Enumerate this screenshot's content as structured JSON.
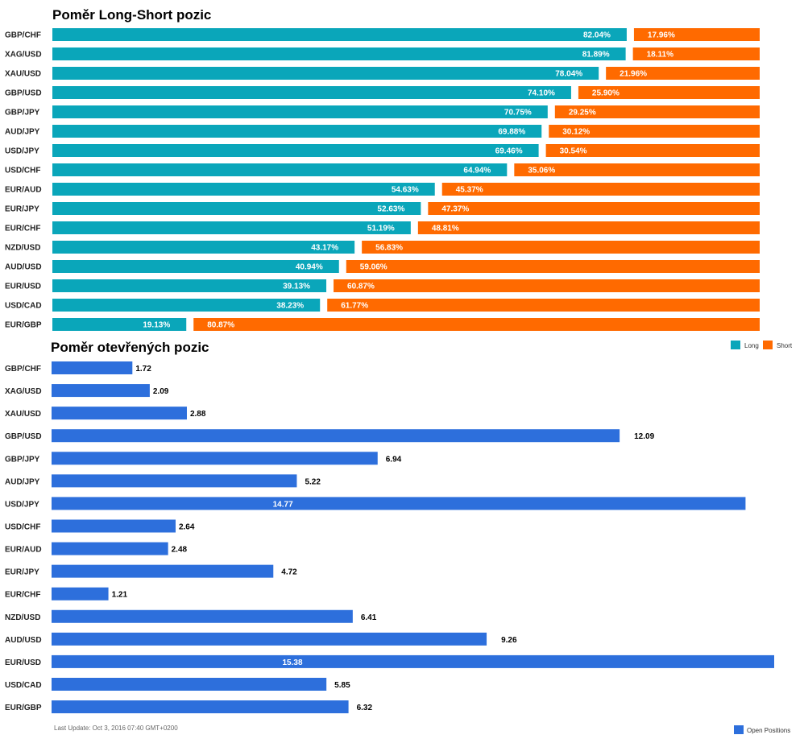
{
  "chart_data": [
    {
      "type": "bar",
      "title": "Poměr Long-Short pozic",
      "orientation": "horizontal",
      "stacked": true,
      "categories": [
        "GBP/CHF",
        "XAG/USD",
        "XAU/USD",
        "GBP/USD",
        "GBP/JPY",
        "AUD/JPY",
        "USD/JPY",
        "USD/CHF",
        "EUR/AUD",
        "EUR/JPY",
        "EUR/CHF",
        "NZD/USD",
        "AUD/USD",
        "EUR/USD",
        "USD/CAD",
        "EUR/GBP"
      ],
      "series": [
        {
          "name": "Long",
          "color": "#0aa6ba",
          "values": [
            82.04,
            81.89,
            78.04,
            74.1,
            70.75,
            69.88,
            69.46,
            64.94,
            54.63,
            52.63,
            51.19,
            43.17,
            40.94,
            39.13,
            38.23,
            19.13
          ],
          "labels": [
            "82.04%",
            "81.89%",
            "78.04%",
            "74.10%",
            "70.75%",
            "69.88%",
            "69.46%",
            "64.94%",
            "54.63%",
            "52.63%",
            "51.19%",
            "43.17%",
            "40.94%",
            "39.13%",
            "38.23%",
            "19.13%"
          ]
        },
        {
          "name": "Short",
          "color": "#ff6a00",
          "values": [
            17.96,
            18.11,
            21.96,
            25.9,
            29.25,
            30.12,
            30.54,
            35.06,
            45.37,
            47.37,
            48.81,
            56.83,
            59.06,
            60.87,
            61.77,
            80.87
          ],
          "labels": [
            "17.96%",
            "18.11%",
            "21.96%",
            "25.90%",
            "29.25%",
            "30.12%",
            "30.54%",
            "35.06%",
            "45.37%",
            "47.37%",
            "48.81%",
            "56.83%",
            "59.06%",
            "60.87%",
            "61.77%",
            "80.87%"
          ]
        }
      ],
      "xlim": [
        0,
        100
      ],
      "legend": "bottom-right"
    },
    {
      "type": "bar",
      "title": "Poměr otevřených pozic",
      "orientation": "horizontal",
      "categories": [
        "GBP/CHF",
        "XAG/USD",
        "XAU/USD",
        "GBP/USD",
        "GBP/JPY",
        "AUD/JPY",
        "USD/JPY",
        "USD/CHF",
        "EUR/AUD",
        "EUR/JPY",
        "EUR/CHF",
        "NZD/USD",
        "AUD/USD",
        "EUR/USD",
        "USD/CAD",
        "EUR/GBP"
      ],
      "series": [
        {
          "name": "Open Positions",
          "color": "#2d6fdc",
          "values": [
            1.72,
            2.09,
            2.88,
            12.09,
            6.94,
            5.22,
            14.77,
            2.64,
            2.48,
            4.72,
            1.21,
            6.41,
            9.26,
            15.38,
            5.85,
            6.32
          ],
          "labels": [
            "1.72",
            "2.09",
            "2.88",
            "12.09",
            "6.94",
            "5.22",
            "14.77",
            "2.64",
            "2.48",
            "4.72",
            "1.21",
            "6.41",
            "9.26",
            "15.38",
            "5.85",
            "6.32"
          ]
        }
      ],
      "xlim": [
        0,
        15.38
      ],
      "legend": "bottom-right"
    }
  ],
  "footer": {
    "last_update": "Last Update: Oct 3, 2016 07:40 GMT+0200"
  }
}
